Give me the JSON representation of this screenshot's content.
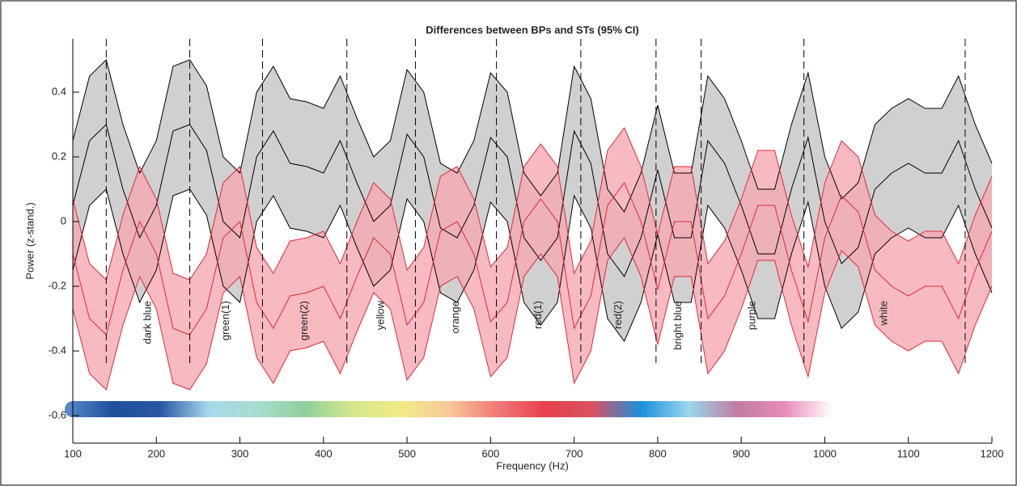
{
  "chart_data": {
    "type": "band",
    "title": "Differences between BPs and STs (95% CI)",
    "xlabel": "Frequency (Hz)",
    "ylabel": "Power (z-stand.)",
    "xlim": [
      100,
      1200
    ],
    "ylim": [
      -0.685,
      0.565
    ],
    "xticks": [
      100,
      200,
      300,
      400,
      500,
      600,
      700,
      800,
      900,
      1000,
      1100,
      1200
    ],
    "yticks": [
      -0.6,
      -0.4,
      -0.2,
      0,
      0.2,
      0.4
    ],
    "x": [
      100,
      120,
      140,
      160,
      180,
      200,
      220,
      240,
      260,
      280,
      300,
      320,
      340,
      360,
      380,
      400,
      420,
      440,
      460,
      480,
      500,
      520,
      540,
      560,
      580,
      600,
      620,
      640,
      660,
      680,
      700,
      720,
      740,
      760,
      780,
      800,
      820,
      840,
      860,
      880,
      900,
      920,
      940,
      960,
      980,
      1000,
      1020,
      1040,
      1060,
      1080,
      1100,
      1120,
      1140,
      1160,
      1180,
      1200
    ],
    "series": [
      {
        "color": "#000000",
        "fill": "#c4c4c4",
        "values": [
          0.05,
          0.25,
          0.3,
          0.1,
          -0.05,
          0.05,
          0.28,
          0.3,
          0.22,
          0.0,
          -0.05,
          0.2,
          0.28,
          0.18,
          0.17,
          0.15,
          0.25,
          0.12,
          0.0,
          0.05,
          0.27,
          0.2,
          -0.02,
          -0.05,
          0.05,
          0.26,
          0.2,
          -0.05,
          -0.12,
          -0.05,
          0.28,
          0.18,
          -0.1,
          -0.17,
          -0.05,
          0.16,
          -0.05,
          -0.05,
          0.25,
          0.18,
          0.05,
          -0.1,
          -0.1,
          0.1,
          0.26,
          0.0,
          -0.13,
          -0.08,
          0.1,
          0.15,
          0.18,
          0.15,
          0.15,
          0.25,
          0.1,
          -0.02
        ],
        "upper": [
          0.25,
          0.45,
          0.5,
          0.3,
          0.15,
          0.25,
          0.48,
          0.5,
          0.42,
          0.2,
          0.15,
          0.4,
          0.48,
          0.38,
          0.37,
          0.35,
          0.45,
          0.32,
          0.2,
          0.25,
          0.47,
          0.4,
          0.18,
          0.15,
          0.25,
          0.46,
          0.4,
          0.15,
          0.08,
          0.15,
          0.48,
          0.38,
          0.1,
          0.03,
          0.15,
          0.36,
          0.15,
          0.15,
          0.45,
          0.38,
          0.25,
          0.1,
          0.1,
          0.3,
          0.46,
          0.2,
          0.07,
          0.12,
          0.3,
          0.35,
          0.38,
          0.35,
          0.35,
          0.45,
          0.3,
          0.18
        ],
        "lower": [
          -0.15,
          0.05,
          0.1,
          -0.1,
          -0.25,
          -0.15,
          0.08,
          0.1,
          0.02,
          -0.2,
          -0.25,
          0,
          0.08,
          -0.02,
          -0.03,
          -0.05,
          0.05,
          -0.08,
          -0.2,
          -0.15,
          0.07,
          0,
          -0.22,
          -0.25,
          -0.15,
          0.06,
          0,
          -0.25,
          -0.32,
          -0.25,
          0.08,
          -0.02,
          -0.3,
          -0.37,
          -0.25,
          -0.04,
          -0.25,
          -0.25,
          0.05,
          -0.02,
          -0.15,
          -0.3,
          -0.3,
          -0.1,
          0.06,
          -0.2,
          -0.33,
          -0.28,
          -0.1,
          -0.05,
          -0.02,
          -0.05,
          -0.05,
          0.05,
          -0.1,
          -0.22
        ]
      },
      {
        "color": "#e02a3a",
        "fill": "#f5a9b2",
        "values": [
          -0.1,
          -0.3,
          -0.35,
          -0.15,
          0,
          -0.1,
          -0.33,
          -0.35,
          -0.27,
          -0.05,
          0,
          -0.25,
          -0.33,
          -0.23,
          -0.22,
          -0.2,
          -0.3,
          -0.17,
          -0.05,
          -0.1,
          -0.32,
          -0.25,
          -0.03,
          0,
          -0.1,
          -0.31,
          -0.25,
          0,
          0.07,
          0,
          -0.33,
          -0.23,
          0.05,
          0.12,
          0,
          -0.21,
          0,
          0,
          -0.3,
          -0.23,
          -0.1,
          0.05,
          0.05,
          -0.15,
          -0.31,
          -0.05,
          0.08,
          0.03,
          -0.15,
          -0.2,
          -0.23,
          -0.2,
          -0.2,
          -0.3,
          -0.15,
          -0.03
        ],
        "upper": [
          0.07,
          -0.13,
          -0.18,
          0.02,
          0.17,
          0.07,
          -0.16,
          -0.18,
          -0.1,
          0.12,
          0.17,
          -0.08,
          -0.16,
          -0.06,
          -0.05,
          -0.03,
          -0.13,
          0,
          0.12,
          0.07,
          -0.15,
          -0.08,
          0.14,
          0.17,
          0.07,
          -0.14,
          -0.08,
          0.17,
          0.24,
          0.17,
          -0.16,
          -0.06,
          0.22,
          0.29,
          0.17,
          -0.04,
          0.17,
          0.17,
          -0.13,
          -0.06,
          0.07,
          0.22,
          0.22,
          0.02,
          -0.14,
          0.12,
          0.25,
          0.2,
          0.02,
          -0.03,
          -0.06,
          -0.03,
          -0.03,
          -0.13,
          0.02,
          0.14
        ],
        "lower": [
          -0.27,
          -0.47,
          -0.52,
          -0.32,
          -0.17,
          -0.27,
          -0.5,
          -0.52,
          -0.44,
          -0.22,
          -0.17,
          -0.42,
          -0.5,
          -0.4,
          -0.39,
          -0.37,
          -0.47,
          -0.34,
          -0.22,
          -0.27,
          -0.49,
          -0.42,
          -0.2,
          -0.17,
          -0.27,
          -0.48,
          -0.42,
          -0.17,
          -0.1,
          -0.17,
          -0.5,
          -0.4,
          -0.12,
          -0.05,
          -0.17,
          -0.38,
          -0.17,
          -0.17,
          -0.47,
          -0.4,
          -0.27,
          -0.12,
          -0.12,
          -0.32,
          -0.48,
          -0.22,
          -0.09,
          -0.14,
          -0.32,
          -0.37,
          -0.4,
          -0.37,
          -0.37,
          -0.47,
          -0.32,
          -0.2
        ]
      }
    ],
    "vlines": [
      140,
      240,
      327,
      428,
      510,
      607,
      708,
      798,
      852,
      975,
      1168
    ],
    "region_labels": [
      "dark blue",
      "green(1)",
      "green(2)",
      "yellow",
      "orange",
      "red(1)",
      "red(2)",
      "bright blue",
      "purple",
      "white"
    ],
    "colorbar": {
      "xlim": [
        100,
        1000
      ],
      "y": -0.58,
      "colors": [
        "#5a8bc9",
        "#1f4f9c",
        "#2a58a3",
        "#a7d9ec",
        "#a9dccf",
        "#8fd09c",
        "#d5e78c",
        "#f2ea88",
        "#f8c89b",
        "#ef7b78",
        "#e8404c",
        "#d85262",
        "#1a90da",
        "#9ad7ee",
        "#c07ca2",
        "#e88cbb",
        "#ffffff"
      ]
    }
  }
}
